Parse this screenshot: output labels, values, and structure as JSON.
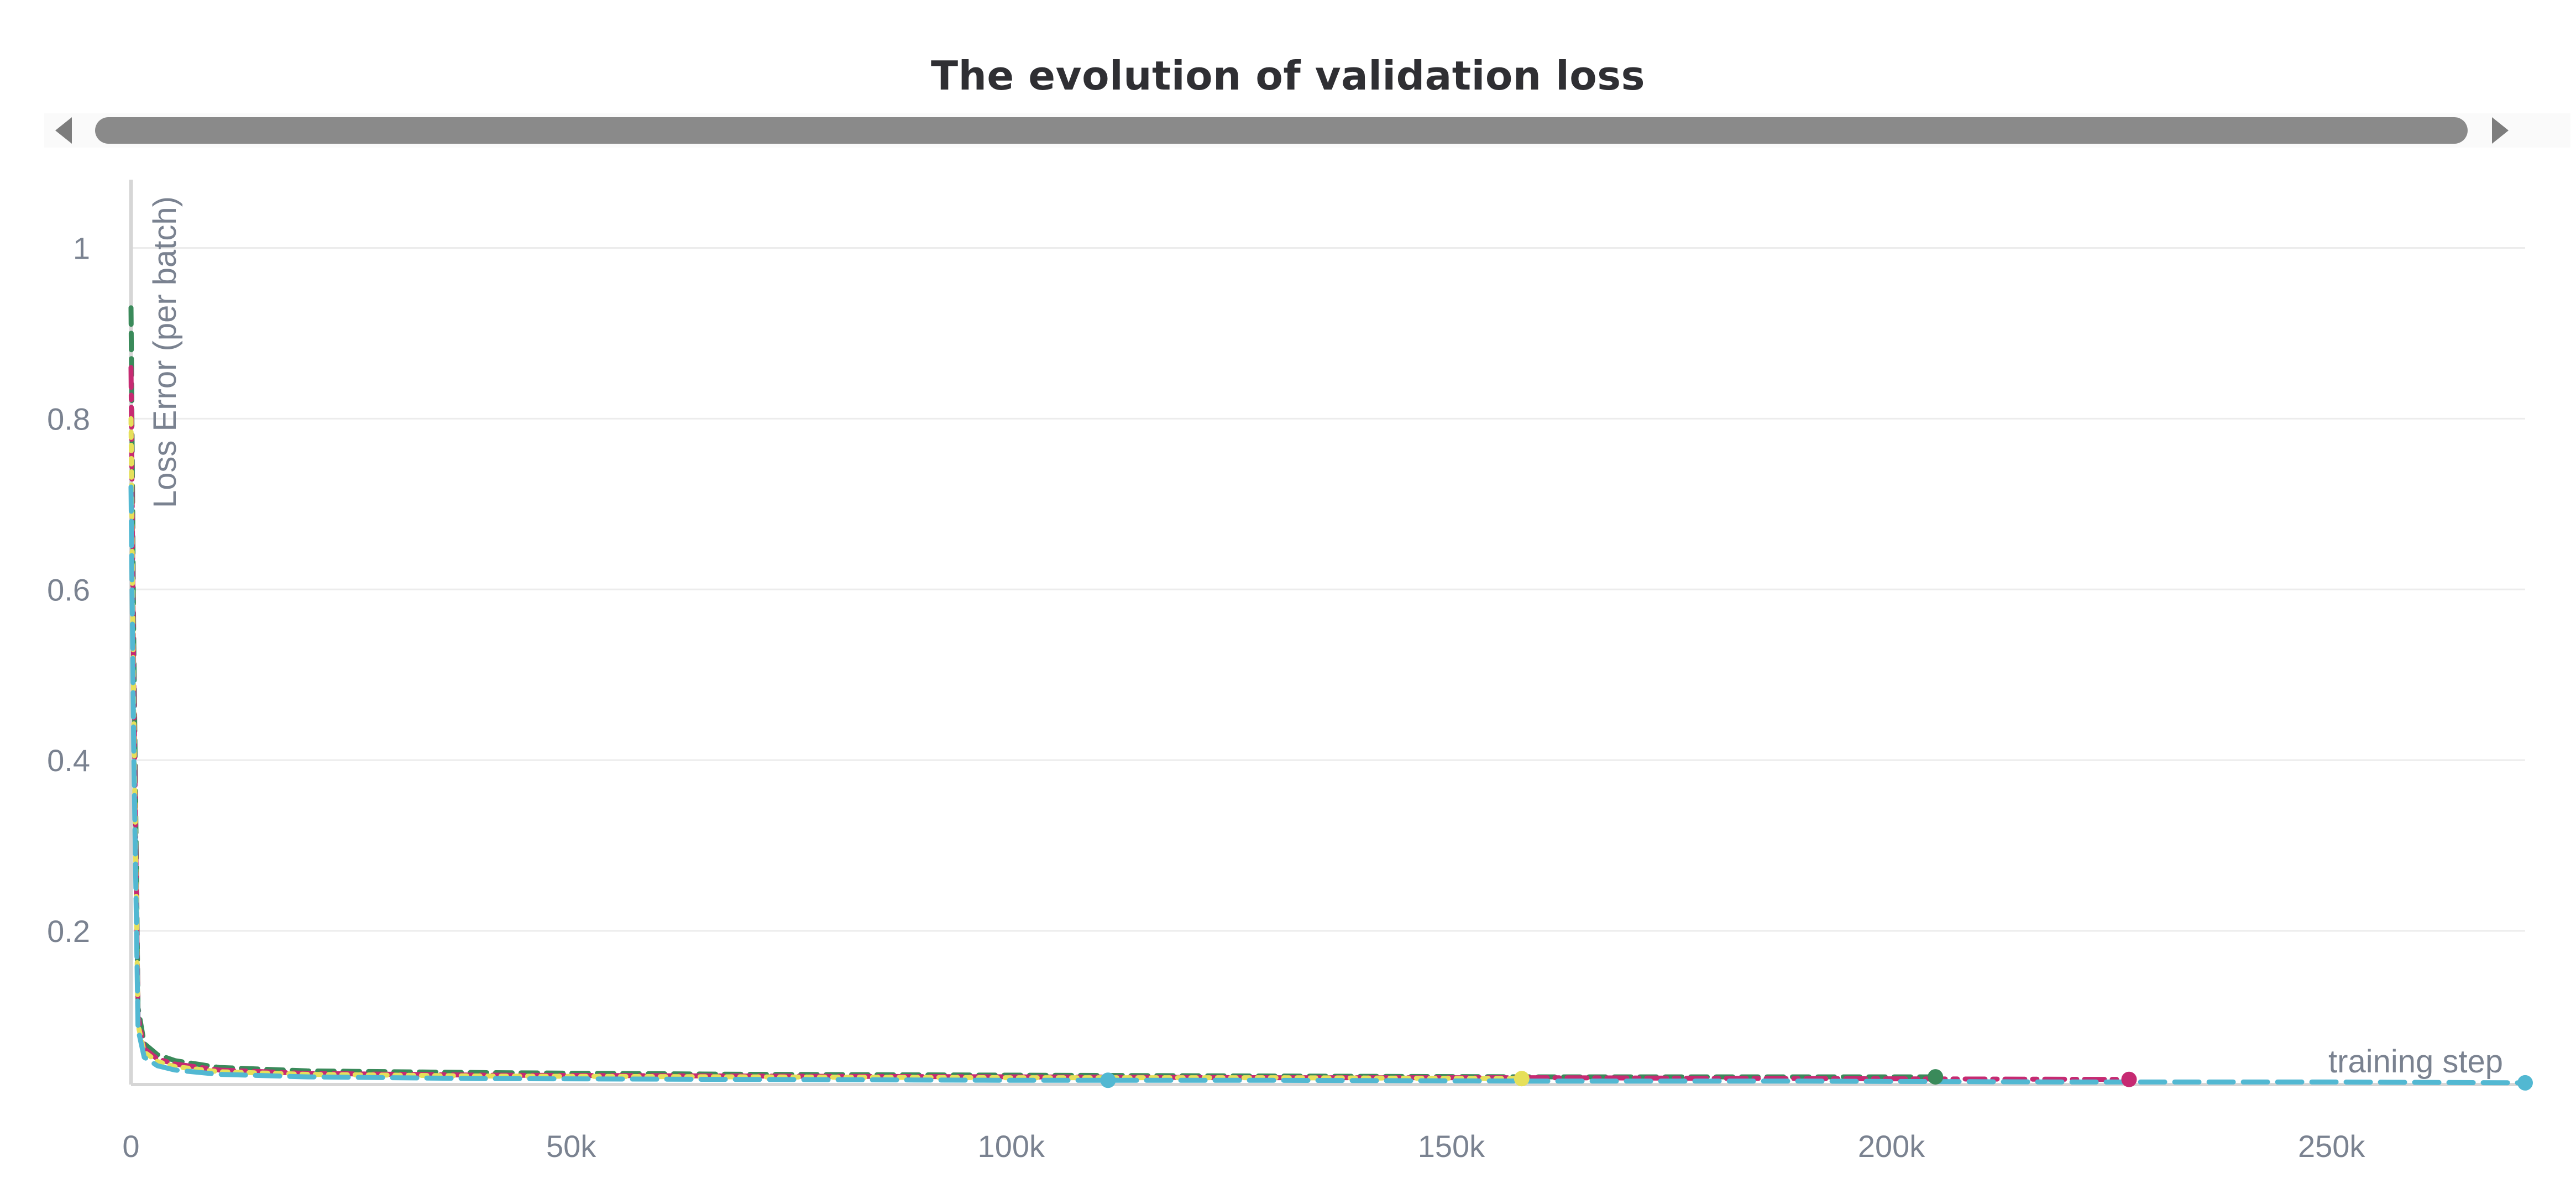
{
  "chart_data": {
    "type": "line",
    "title": "The evolution of validation loss",
    "xlabel": "training step",
    "ylabel": "Loss Error (per batch)",
    "xlim": [
      0,
      272000
    ],
    "ylim": [
      0.02,
      1.08
    ],
    "x_ticks": [
      {
        "value": 0,
        "label": "0"
      },
      {
        "value": 50000,
        "label": "50k"
      },
      {
        "value": 100000,
        "label": "100k"
      },
      {
        "value": 150000,
        "label": "150k"
      },
      {
        "value": 200000,
        "label": "200k"
      },
      {
        "value": 250000,
        "label": "250k"
      }
    ],
    "y_ticks": [
      {
        "value": 0.2,
        "label": "0.2"
      },
      {
        "value": 0.4,
        "label": "0.4"
      },
      {
        "value": 0.6,
        "label": "0.6"
      },
      {
        "value": 0.8,
        "label": "0.8"
      },
      {
        "value": 1,
        "label": "1"
      }
    ],
    "grid": true,
    "legend": "none",
    "series": [
      {
        "color": "#3a8a5a",
        "dash": "dashed",
        "x": [
          0,
          300,
          800,
          1500,
          3000,
          5000,
          10000,
          20000,
          40000,
          70000,
          100000,
          130000,
          160000,
          190000,
          205000
        ],
        "y": [
          0.93,
          0.55,
          0.11,
          0.068,
          0.055,
          0.048,
          0.04,
          0.036,
          0.034,
          0.032,
          0.031,
          0.03,
          0.029,
          0.029,
          0.029
        ]
      },
      {
        "color": "#c62a72",
        "dash": "dashdot",
        "x": [
          0,
          300,
          800,
          1500,
          3000,
          5000,
          10000,
          20000,
          40000,
          70000,
          100000,
          130000,
          160000,
          190000,
          227000
        ],
        "y": [
          0.86,
          0.5,
          0.1,
          0.062,
          0.05,
          0.044,
          0.037,
          0.033,
          0.031,
          0.03,
          0.029,
          0.028,
          0.028,
          0.027,
          0.026
        ]
      },
      {
        "color": "#e6e05a",
        "dash": "dotted",
        "x": [
          0,
          300,
          800,
          1500,
          3000,
          5000,
          10000,
          20000,
          40000,
          70000,
          100000,
          130000,
          158000
        ],
        "y": [
          0.8,
          0.46,
          0.09,
          0.058,
          0.047,
          0.041,
          0.035,
          0.032,
          0.03,
          0.029,
          0.028,
          0.028,
          0.027
        ]
      },
      {
        "color": "#52b8d2",
        "dash": "longdash",
        "x": [
          0,
          300,
          800,
          1500,
          3000,
          5000,
          10000,
          20000,
          40000,
          70000,
          100000,
          130000,
          160000,
          190000,
          220000,
          250000,
          272000
        ],
        "y": [
          0.72,
          0.42,
          0.085,
          0.052,
          0.042,
          0.037,
          0.032,
          0.029,
          0.027,
          0.026,
          0.025,
          0.025,
          0.024,
          0.024,
          0.023,
          0.023,
          0.022
        ]
      }
    ],
    "end_markers": [
      {
        "color": "#3a8a5a",
        "x": 205000,
        "y": 0.029
      },
      {
        "color": "#c62a72",
        "x": 227000,
        "y": 0.026
      },
      {
        "color": "#e6e05a",
        "x": 158000,
        "y": 0.027
      },
      {
        "color": "#52b8d2",
        "x": 272000,
        "y": 0.022
      },
      {
        "color": "#52b8d2",
        "x": 111000,
        "y": 0.025
      }
    ]
  }
}
